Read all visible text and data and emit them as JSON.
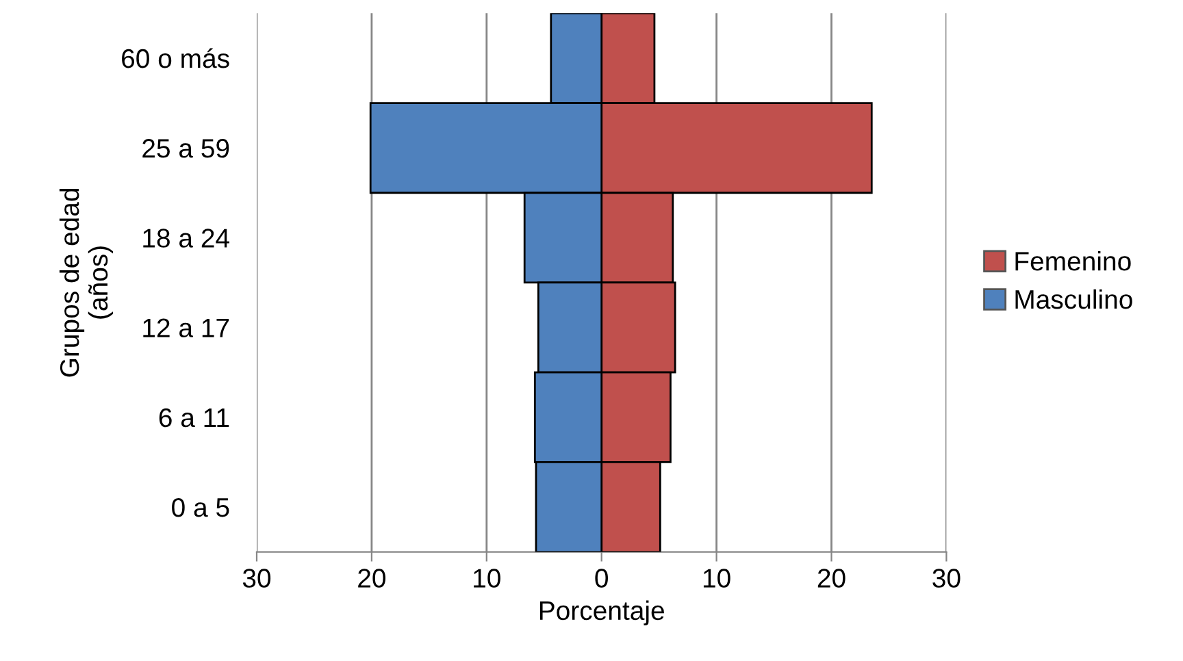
{
  "chart_data": {
    "type": "bar",
    "stacked": true,
    "orientation": "horizontal",
    "xlabel": "Porcentaje",
    "ylabel": "Grupos de edad\n(años)",
    "categories": [
      "60 o más",
      "25 a 59",
      "18 a 24",
      "12 a 17",
      "6 a 11",
      "0 a 5"
    ],
    "series": [
      {
        "name": "Femenino",
        "color": "#c0504d",
        "values": [
          4.6,
          23.5,
          6.2,
          6.4,
          6.0,
          5.1
        ]
      },
      {
        "name": "Masculino",
        "color": "#4f81bd",
        "values": [
          -4.4,
          -20.1,
          -6.7,
          -5.5,
          -5.8,
          -5.7
        ]
      }
    ],
    "xlim": [
      -30,
      30
    ],
    "xticks": [
      {
        "value": -30,
        "label": "30"
      },
      {
        "value": -20,
        "label": "20"
      },
      {
        "value": -10,
        "label": "10"
      },
      0,
      10,
      20,
      30
    ],
    "grid": "x",
    "legend": "right"
  }
}
